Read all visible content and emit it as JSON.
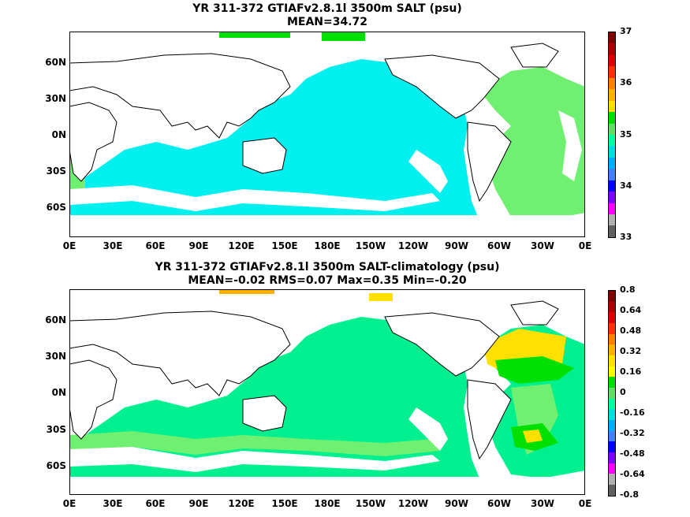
{
  "panels": [
    {
      "title_line1": "YR 311-372 GTIAFv2.8.1l 3500m SALT (psu)",
      "title_line2": "MEAN=34.72",
      "y_labels": [
        "60N",
        "30N",
        "0N",
        "30S",
        "60S"
      ],
      "x_labels": [
        "0E",
        "30E",
        "60E",
        "90E",
        "120E",
        "150E",
        "180E",
        "150W",
        "120W",
        "90W",
        "60W",
        "30W",
        "0E"
      ],
      "colorbar_labels": [
        "37",
        "36",
        "35",
        "34",
        "33"
      ],
      "colorbar_colors": [
        "#7f0000",
        "#b00000",
        "#e00000",
        "#ff3000",
        "#ff8000",
        "#ffb000",
        "#ffe000",
        "#00e000",
        "#60e060",
        "#00ffa0",
        "#00e0e0",
        "#00b0ff",
        "#4080ff",
        "#0000ff",
        "#8000ff",
        "#ff00ff",
        "#b0b0b0",
        "#606060"
      ],
      "colors": {
        "land": "#ffffff",
        "pacific": "#00f0f0",
        "atlantic": "#70f070",
        "arctic": "#00e000"
      }
    },
    {
      "title_line1": "YR 311-372 GTIAFv2.8.1l 3500m SALT-climatology (psu)",
      "title_line2": "MEAN=-0.02   RMS=0.07   Max=0.35   Min=-0.20",
      "y_labels": [
        "60N",
        "30N",
        "0N",
        "30S",
        "60S"
      ],
      "x_labels": [
        "0E",
        "30E",
        "60E",
        "90E",
        "120E",
        "150E",
        "180E",
        "150W",
        "120W",
        "90W",
        "60W",
        "30W",
        "0E"
      ],
      "colorbar_labels": [
        "0.8",
        "0.64",
        "0.48",
        "0.32",
        "0.16",
        "0",
        "-0.16",
        "-0.32",
        "-0.48",
        "-0.64",
        "-0.8"
      ],
      "colorbar_colors": [
        "#7f0000",
        "#b00000",
        "#e00000",
        "#ff3000",
        "#ff8000",
        "#ffb000",
        "#ffe000",
        "#ffff00",
        "#00e000",
        "#60e060",
        "#00ffa0",
        "#00e0e0",
        "#00b0ff",
        "#4080ff",
        "#0000ff",
        "#8000ff",
        "#ff00ff",
        "#b0b0b0",
        "#606060"
      ],
      "colors": {
        "ocean": "#00f090",
        "yellow": "#ffe000",
        "orange": "#ffb000",
        "green": "#00e000",
        "lightgreen": "#70f070"
      }
    }
  ]
}
